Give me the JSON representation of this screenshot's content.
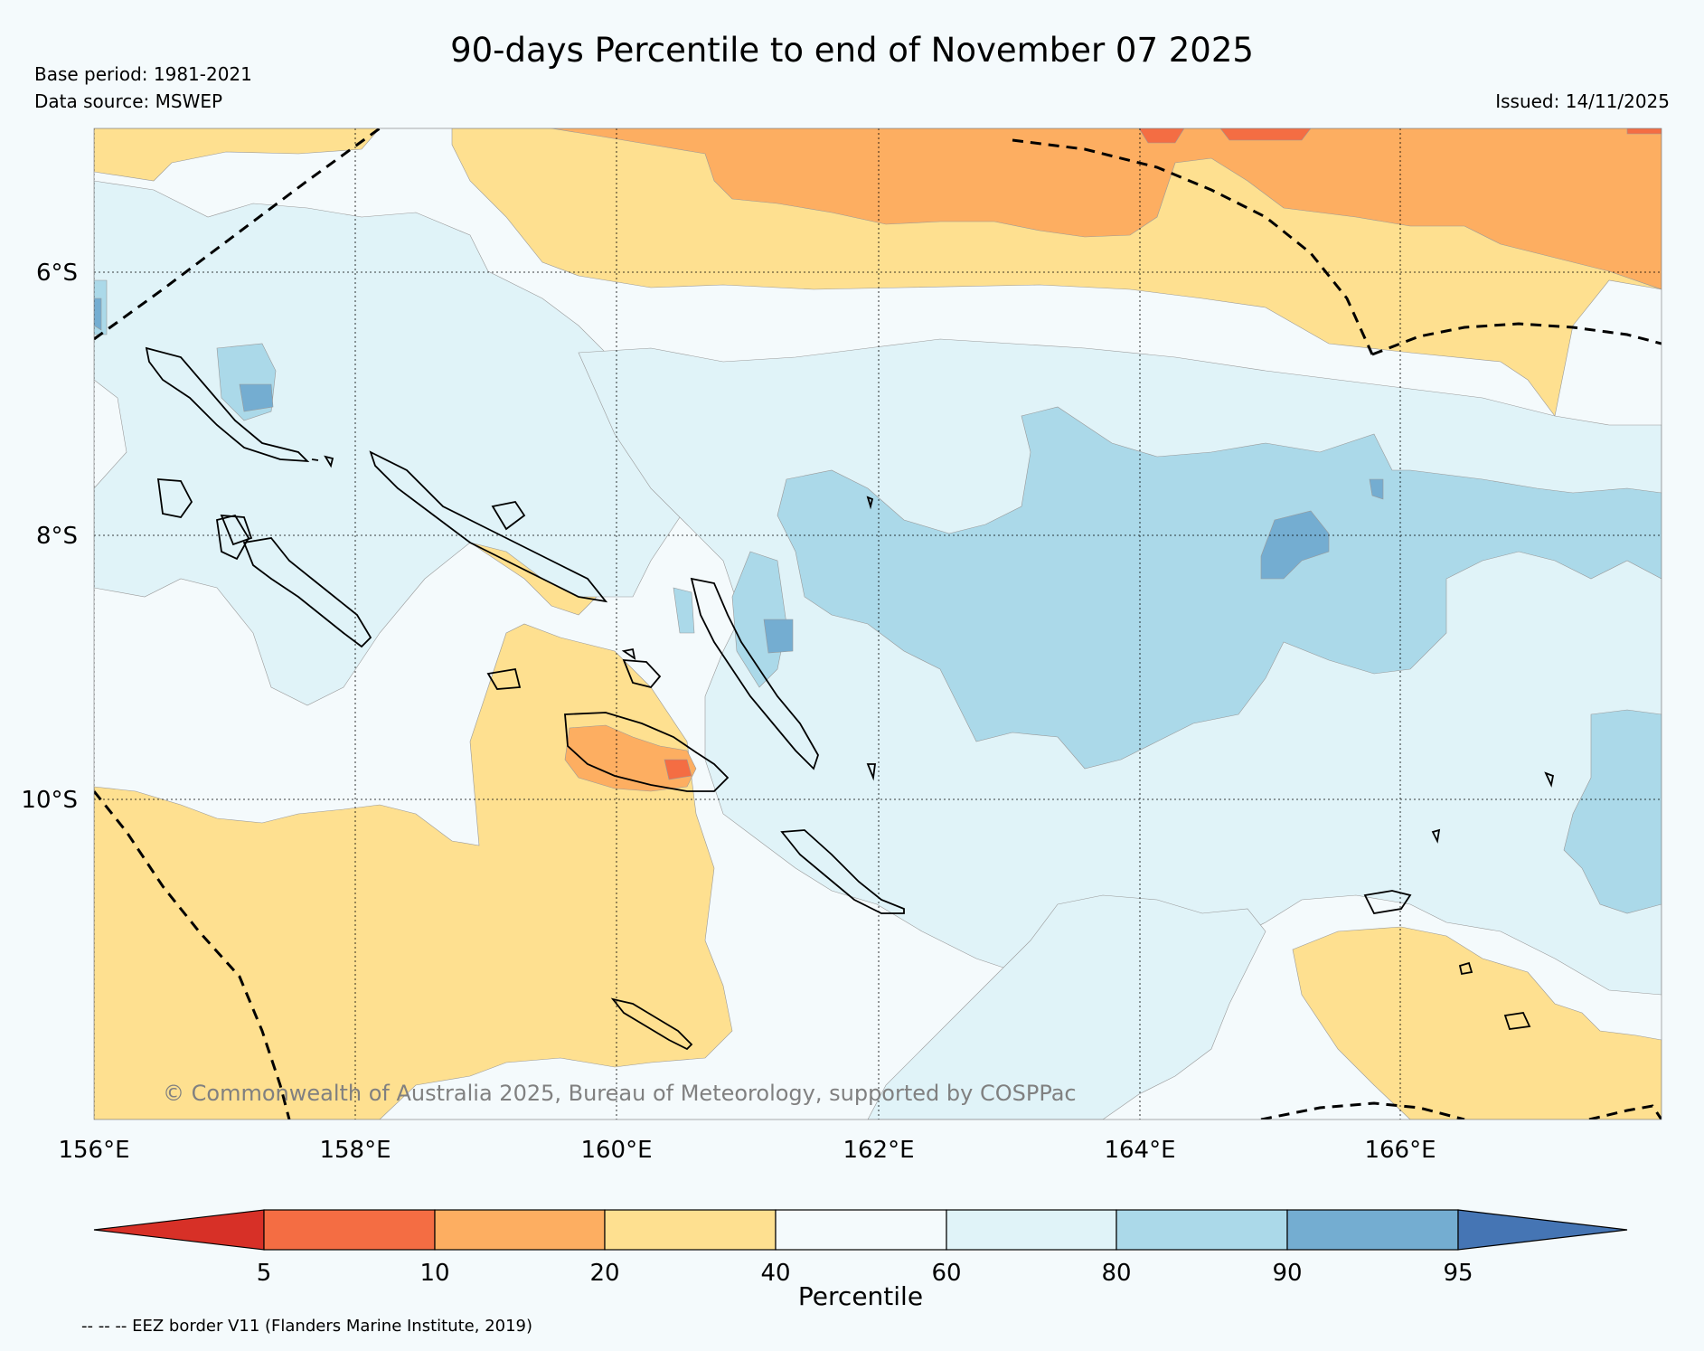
{
  "title": "90-days Percentile to end of November 07 2025",
  "base_period": "Base period: 1981-2021",
  "data_source": "Data source: MSWEP",
  "issued": "Issued: 14/11/2025",
  "copyright": "© Commonwealth of Australia 2025, Bureau of Meteorology, supported by COSPPac",
  "eez_note": "-- -- -- EEZ border V11 (Flanders Marine Institute, 2019)",
  "map": {
    "lon_ticks": [
      "156°E",
      "158°E",
      "160°E",
      "162°E",
      "164°E",
      "166°E"
    ],
    "lat_ticks": [
      "6°S",
      "8°S",
      "10°S"
    ]
  },
  "colorbar": {
    "label": "Percentile",
    "ticks": [
      "5",
      "10",
      "20",
      "40",
      "60",
      "80",
      "90",
      "95"
    ],
    "bins": [
      {
        "range": "<5",
        "color": "#d73027"
      },
      {
        "range": "5-10",
        "color": "#f46d43"
      },
      {
        "range": "10-20",
        "color": "#fdae61"
      },
      {
        "range": "20-40",
        "color": "#fee090"
      },
      {
        "range": "40-60",
        "color": "#f4fafc"
      },
      {
        "range": "60-80",
        "color": "#e0f3f8"
      },
      {
        "range": "80-90",
        "color": "#abd9e9"
      },
      {
        "range": "90-95",
        "color": "#74add1"
      },
      {
        "range": ">95",
        "color": "#4575b4"
      }
    ]
  }
}
